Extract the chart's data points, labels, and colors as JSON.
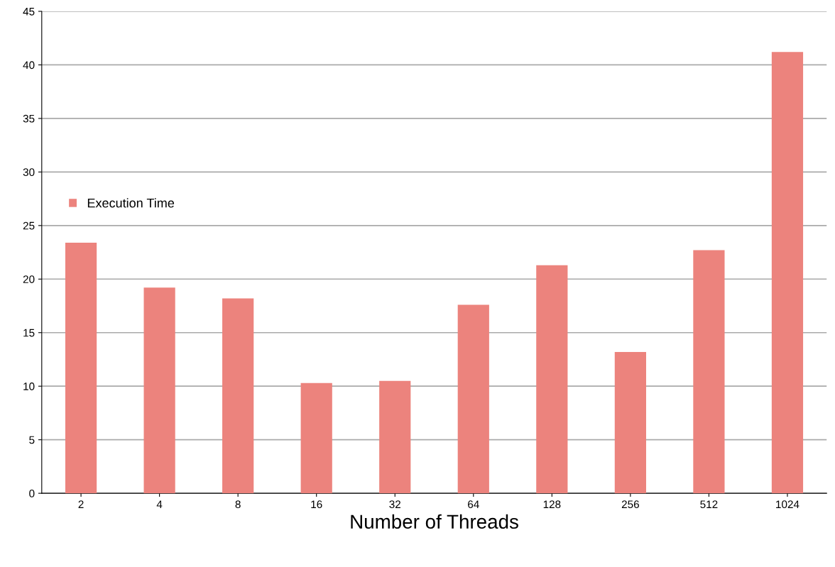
{
  "chart_data": {
    "type": "bar",
    "xlabel": "Number of Threads",
    "categories": [
      "2",
      "4",
      "8",
      "16",
      "32",
      "64",
      "128",
      "256",
      "512",
      "1024"
    ],
    "series": [
      {
        "name": "Execution Time",
        "color": "#ec837d",
        "values": [
          23.4,
          19.2,
          18.2,
          10.3,
          10.5,
          17.6,
          21.3,
          13.2,
          22.7,
          41.2
        ]
      }
    ],
    "ylim": [
      0,
      45
    ],
    "yticks": [
      0,
      5,
      10,
      15,
      20,
      25,
      30,
      35,
      40,
      45
    ],
    "grid": "y",
    "legend": "left"
  }
}
